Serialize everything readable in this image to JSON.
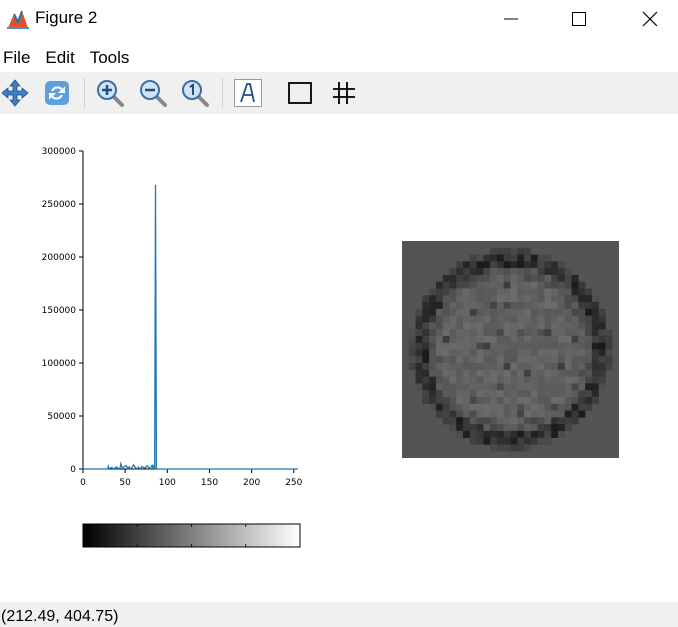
{
  "window": {
    "title": "Figure 2",
    "controls": [
      "minimize",
      "maximize",
      "close"
    ]
  },
  "menu": {
    "items": [
      "File",
      "Edit",
      "Tools"
    ]
  },
  "toolbar": {
    "tools": [
      {
        "name": "pan-icon"
      },
      {
        "name": "rotate-icon"
      },
      {
        "name": "zoom-in-icon"
      },
      {
        "name": "zoom-out-icon"
      },
      {
        "name": "zoom-reset-icon"
      },
      {
        "name": "insert-text-icon"
      },
      {
        "name": "axes-box-icon"
      },
      {
        "name": "grid-icon"
      }
    ]
  },
  "status": {
    "coordinates": "(212.49, 404.75)"
  },
  "chart_data": [
    {
      "type": "line",
      "title": "",
      "xlabel": "",
      "ylabel": "",
      "xlim": [
        0,
        255
      ],
      "ylim": [
        0,
        300000
      ],
      "xticks": [
        0,
        50,
        100,
        150,
        200,
        250
      ],
      "xtick_labels": [
        "0",
        "50",
        "100",
        "150",
        "200",
        "250"
      ],
      "yticks": [
        0,
        50000,
        100000,
        150000,
        200000,
        250000,
        300000
      ],
      "ytick_labels": [
        "0",
        "50000",
        "100000",
        "150000",
        "200000",
        "250000",
        "300000"
      ],
      "grid": false,
      "color": "#1f77b4",
      "series": [
        {
          "x": [
            0,
            29,
            30,
            31,
            34,
            36,
            40,
            42,
            44,
            45,
            47,
            49,
            51,
            53,
            55,
            56,
            58,
            60,
            62,
            64,
            66,
            68,
            70,
            72,
            74,
            76,
            78,
            80,
            81,
            82,
            83,
            84,
            85,
            86,
            87,
            88,
            90,
            100,
            150,
            200,
            250,
            255
          ],
          "y": [
            0,
            0,
            2500,
            0,
            1500,
            0,
            2000,
            0,
            1200,
            5000,
            0,
            2500,
            3000,
            1000,
            2000,
            0,
            1200,
            4000,
            1500,
            0,
            1800,
            0,
            2500,
            1200,
            1000,
            3000,
            1500,
            0,
            2200,
            3500,
            1000,
            2800,
            1500,
            268000,
            500,
            0,
            0,
            0,
            0,
            0,
            0,
            0
          ]
        }
      ]
    },
    {
      "type": "heatmap",
      "title": "",
      "description_colormap": "gray",
      "grid_size": [
        32,
        32
      ],
      "background_level": 0.33
    },
    {
      "type": "colorbar",
      "colormap": "gray",
      "orientation": "horizontal"
    }
  ]
}
